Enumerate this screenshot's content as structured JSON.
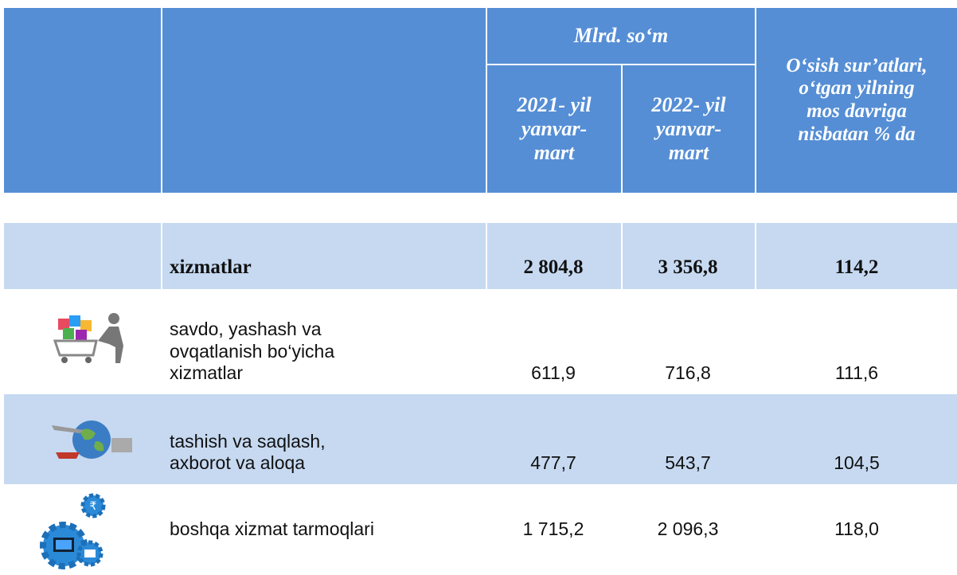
{
  "header": {
    "units": "Mlrd. so‘m",
    "col_2021": "2021- yil\nyanvar-\nmart",
    "col_2022": "2022- yil\nyanvar-\nmart",
    "growth": "O‘sish sur’atlari,\no‘tgan yilning\nmos davriga\nnisbatan % da"
  },
  "table": {
    "rows": [
      {
        "label": "xizmatlar",
        "v2021": "2 804,8",
        "v2022": "3 356,8",
        "growth": "114,2"
      },
      {
        "label": "savdo, yashash va\n ovqatlanish bo‘yicha\n xizmatlar",
        "v2021": "611,9",
        "v2022": "716,8",
        "growth": "111,6"
      },
      {
        "label": "tashish va saqlash,\n  axborot va aloqa",
        "v2021": "477,7",
        "v2022": "543,7",
        "growth": "104,5"
      },
      {
        "label": " boshqa xizmat tarmoqlari",
        "v2021": "1 715,2",
        "v2022": "2 096,3",
        "growth": "118,0"
      }
    ]
  }
}
